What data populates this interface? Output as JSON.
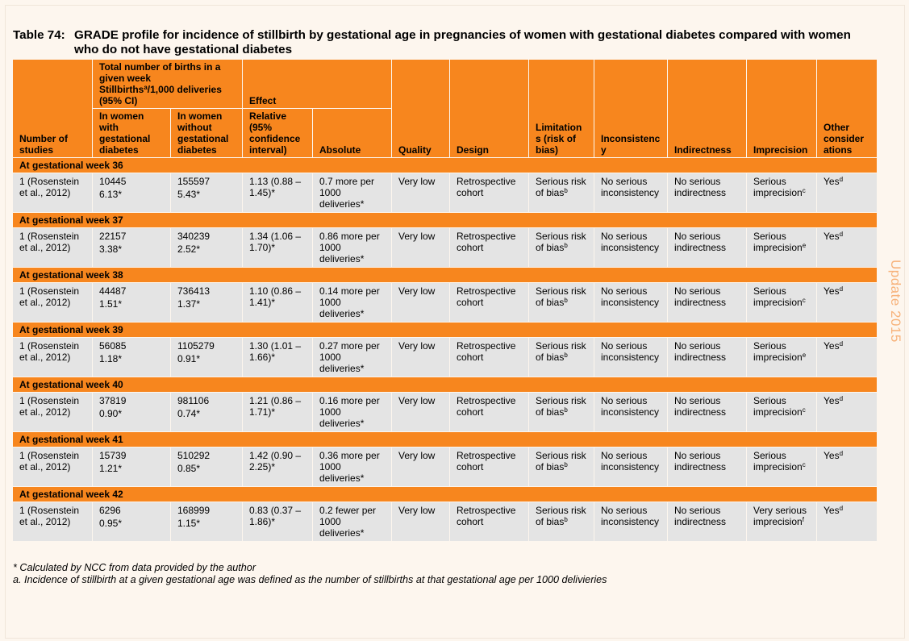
{
  "title": {
    "label": "Table 74:",
    "text": "GRADE profile for incidence of stillbirth by gestational age in pregnancies of women with gestational diabetes compared with women who do not have gestational diabetes"
  },
  "header": {
    "studies": "Number of studies",
    "total_births": "Total number of births in a given week",
    "stillbirths_pre": "Stillbirths",
    "stillbirths_sup": "a",
    "stillbirths_post": "/1,000 deliveries (95% CI)",
    "effect": "Effect",
    "gd": "In women with gestational diabetes",
    "nogd": "In women without gestational diabetes",
    "relative": "Relative (95% confidence interval)",
    "absolute": "Absolute",
    "quality": "Quality",
    "design": "Design",
    "limitations": "Limitation s (risk of bias)",
    "inconsistency": "Inconsistenc y",
    "indirectness": "Indirectness",
    "imprecision": "Imprecision",
    "other": "Other consider ations"
  },
  "groups": [
    {
      "label": "At gestational week 36",
      "studies": "1 (Rosenstein et al., 2012)",
      "gd_n": "10445",
      "gd_rate": "6.13*",
      "nogd_n": "155597",
      "nogd_rate": "5.43*",
      "relative": "1.13 (0.88 – 1.45)*",
      "absolute": "0.7 more per 1000 deliveries*",
      "quality": "Very low",
      "design": "Retrospective cohort",
      "lim": "Serious risk of bias",
      "lim_sup": "b",
      "inc": "No serious inconsistency",
      "ind": "No serious indirectness",
      "imp": "Serious imprecision",
      "imp_sup": "c",
      "other": "Yes",
      "other_sup": "d"
    },
    {
      "label": "At gestational week 37",
      "studies": "1 (Rosenstein et al., 2012)",
      "gd_n": "22157",
      "gd_rate": "3.38*",
      "nogd_n": "340239",
      "nogd_rate": "2.52*",
      "relative": "1.34 (1.06 – 1.70)*",
      "absolute": "0.86 more per 1000 deliveries*",
      "quality": "Very low",
      "design": "Retrospective cohort",
      "lim": "Serious risk of bias",
      "lim_sup": "b",
      "inc": "No serious inconsistency",
      "ind": "No serious indirectness",
      "imp": "Serious imprecision",
      "imp_sup": "e",
      "other": "Yes",
      "other_sup": "d"
    },
    {
      "label": "At gestational week 38",
      "studies": "1 (Rosenstein et al., 2012)",
      "gd_n": "44487",
      "gd_rate": "1.51*",
      "nogd_n": "736413",
      "nogd_rate": "1.37*",
      "relative": "1.10 (0.86 – 1.41)*",
      "absolute": "0.14 more per 1000 deliveries*",
      "quality": "Very low",
      "design": "Retrospective cohort",
      "lim": "Serious risk of bias",
      "lim_sup": "b",
      "inc": "No serious inconsistency",
      "ind": "No serious indirectness",
      "imp": "Serious imprecision",
      "imp_sup": "c",
      "other": "Yes",
      "other_sup": "d"
    },
    {
      "label": "At gestational week 39",
      "studies": "1 (Rosenstein et al., 2012)",
      "gd_n": "56085",
      "gd_rate": "1.18*",
      "nogd_n": "1105279",
      "nogd_rate": "0.91*",
      "relative": "1.30 (1.01 – 1.66)*",
      "absolute": "0.27 more per 1000 deliveries*",
      "quality": "Very low",
      "design": "Retrospective cohort",
      "lim": "Serious risk of bias",
      "lim_sup": "b",
      "inc": "No serious inconsistency",
      "ind": "No serious indirectness",
      "imp": "Serious imprecision",
      "imp_sup": "e",
      "other": "Yes",
      "other_sup": "d"
    },
    {
      "label": "At gestational week 40",
      "studies": "1 (Rosenstein et al., 2012)",
      "gd_n": "37819",
      "gd_rate": "0.90*",
      "nogd_n": "981106",
      "nogd_rate": "0.74*",
      "relative": "1.21 (0.86 – 1.71)*",
      "absolute": "0.16 more per 1000 deliveries*",
      "quality": "Very low",
      "design": "Retrospective cohort",
      "lim": "Serious risk of bias",
      "lim_sup": "b",
      "inc": "No serious inconsistency",
      "ind": "No serious indirectness",
      "imp": "Serious imprecision",
      "imp_sup": "c",
      "other": "Yes",
      "other_sup": "d"
    },
    {
      "label": "At gestational week 41",
      "studies": "1 (Rosenstein et al., 2012)",
      "gd_n": "15739",
      "gd_rate": "1.21*",
      "nogd_n": "510292",
      "nogd_rate": "0.85*",
      "relative": "1.42 (0.90 – 2.25)*",
      "absolute": "0.36 more per 1000 deliveries*",
      "quality": "Very low",
      "design": "Retrospective cohort",
      "lim": "Serious risk of bias",
      "lim_sup": "b",
      "inc": "No serious inconsistency",
      "ind": "No serious indirectness",
      "imp": "Serious imprecision",
      "imp_sup": "c",
      "other": "Yes",
      "other_sup": "d"
    },
    {
      "label": "At gestational week 42",
      "studies": "1 (Rosenstein et al., 2012)",
      "gd_n": "6296",
      "gd_rate": "0.95*",
      "nogd_n": "168999",
      "nogd_rate": "1.15*",
      "relative": "0.83 (0.37 – 1.86)*",
      "absolute": "0.2 fewer per 1000 deliveries*",
      "quality": "Very low",
      "design": "Retrospective cohort",
      "lim": "Serious risk of bias",
      "lim_sup": "b",
      "inc": "No serious inconsistency",
      "ind": "No serious indirectness",
      "imp": "Very serious imprecision",
      "imp_sup": "f",
      "other": "Yes",
      "other_sup": "d"
    }
  ],
  "footnotes": {
    "star": "* Calculated by NCC from data provided by the author",
    "a": "a. Incidence of stillbirth at a given gestational age was defined as the number of stillbirths at that gestational age per 1000 delivieries"
  },
  "side_label": "Update 2015"
}
